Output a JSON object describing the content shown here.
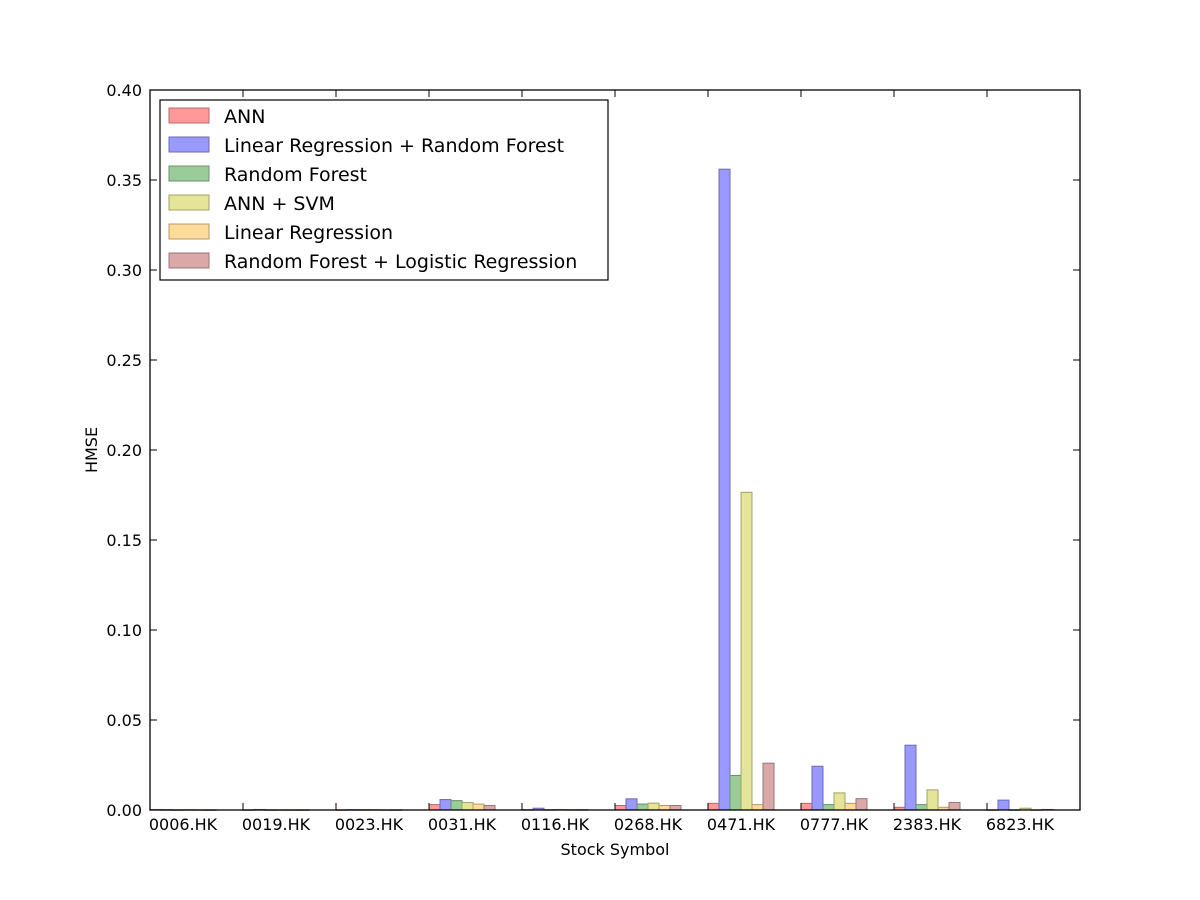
{
  "chart_data": {
    "type": "bar",
    "title": "",
    "xlabel": "Stock Symbol",
    "ylabel": "HMSE",
    "ylim": [
      0,
      0.4
    ],
    "yticks": [
      "0.00",
      "0.05",
      "0.10",
      "0.15",
      "0.20",
      "0.25",
      "0.30",
      "0.35",
      "0.40"
    ],
    "categories": [
      "0006.HK",
      "0019.HK",
      "0023.HK",
      "0031.HK",
      "0116.HK",
      "0268.HK",
      "0471.HK",
      "0777.HK",
      "2383.HK",
      "6823.HK"
    ],
    "legend_position": "top-left",
    "grid": false,
    "series": [
      {
        "name": "ANN",
        "color": "#ff9999",
        "edge": "#b36b6b",
        "values": [
          0.0003,
          0.0001,
          0.0001,
          0.003,
          0.0002,
          0.0025,
          0.0037,
          0.0037,
          0.0015,
          0.0001
        ]
      },
      {
        "name": "Linear Regression + Random Forest",
        "color": "#9999ff",
        "edge": "#6b6bb3",
        "values": [
          0.0002,
          0.0003,
          0.0002,
          0.0058,
          0.001,
          0.0062,
          0.356,
          0.0243,
          0.036,
          0.0055
        ]
      },
      {
        "name": "Random Forest",
        "color": "#99cc99",
        "edge": "#6b8f6b",
        "values": [
          0.0001,
          0.0001,
          0.0002,
          0.0052,
          0.0002,
          0.0033,
          0.0192,
          0.003,
          0.003,
          0.0001
        ]
      },
      {
        "name": "ANN + SVM",
        "color": "#e5e599",
        "edge": "#a0a06b",
        "values": [
          0.0002,
          0.0001,
          0.0002,
          0.0042,
          0.0003,
          0.0038,
          0.1765,
          0.0095,
          0.0112,
          0.001
        ]
      },
      {
        "name": "Linear Regression",
        "color": "#ffdb99",
        "edge": "#b39a6b",
        "values": [
          0.0001,
          0.0001,
          0.0001,
          0.0033,
          0.0002,
          0.0025,
          0.003,
          0.0037,
          0.0015,
          0.0001
        ]
      },
      {
        "name": "Random Forest + Logistic Regression",
        "color": "#dba8a8",
        "edge": "#9a7676",
        "values": [
          0.0001,
          0.0001,
          0.0001,
          0.0025,
          0.0002,
          0.0025,
          0.026,
          0.0063,
          0.0042,
          0.0003
        ]
      }
    ]
  }
}
